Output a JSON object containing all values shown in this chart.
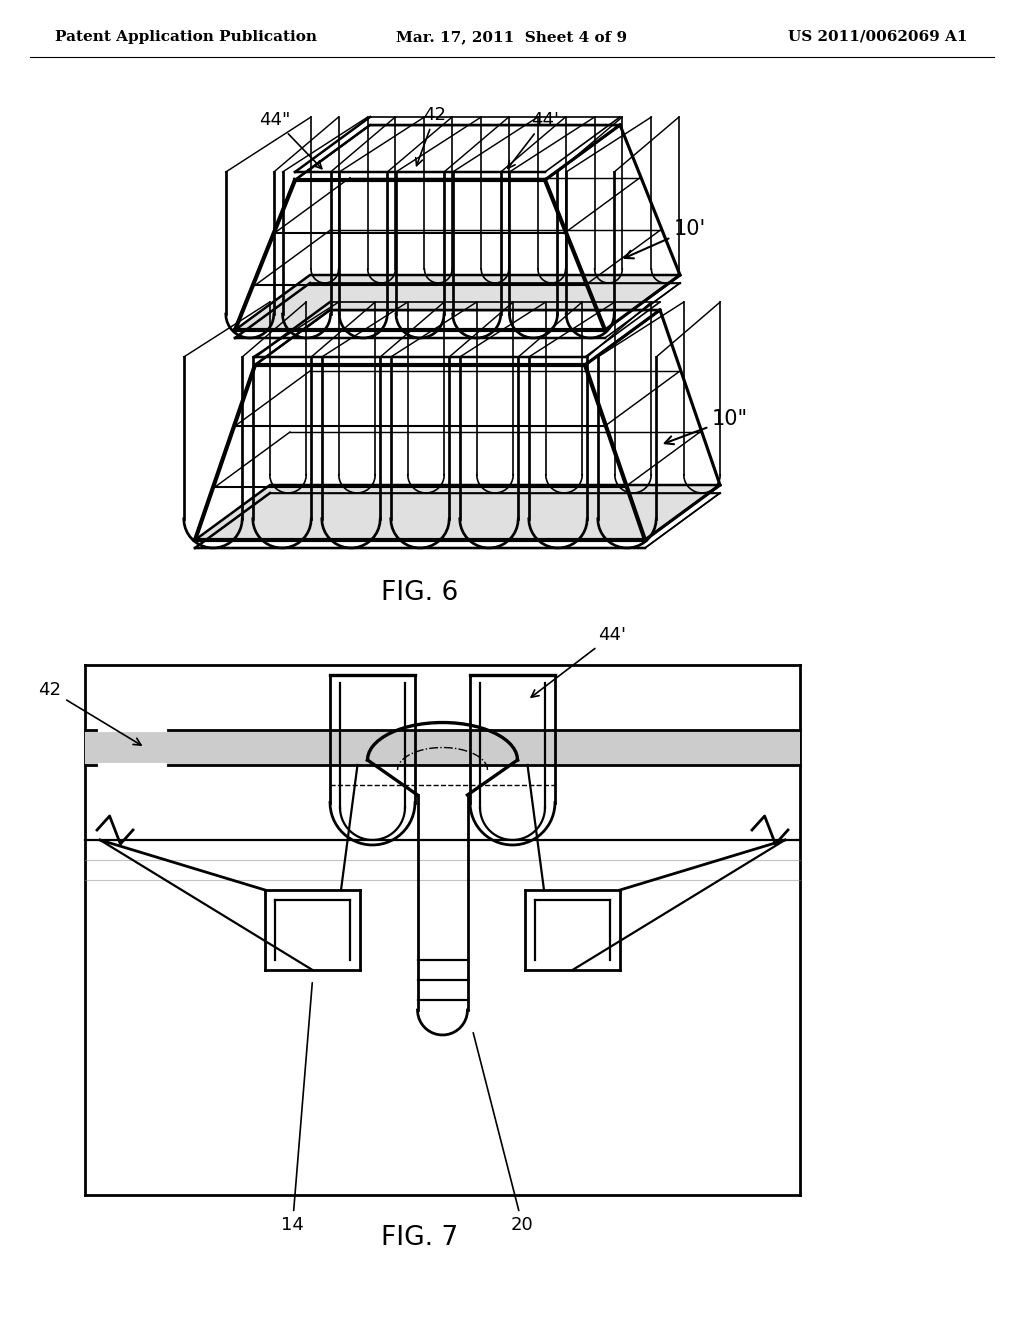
{
  "background_color": "#ffffff",
  "header_left": "Patent Application Publication",
  "header_center": "Mar. 17, 2011  Sheet 4 of 9",
  "header_right": "US 2011/0062069 A1",
  "header_fontsize": 11,
  "fig6_label": "FIG. 6",
  "fig7_label": "FIG. 7",
  "label_44pp": "44\"",
  "label_42": "42",
  "label_44p": "44'",
  "label_10p": "10'",
  "label_10pp": "10\"",
  "label_42_fig7": "42",
  "label_44p_fig7": "44'",
  "label_14": "14",
  "label_20": "20",
  "line_color": "#000000",
  "annotation_fontsize": 13
}
